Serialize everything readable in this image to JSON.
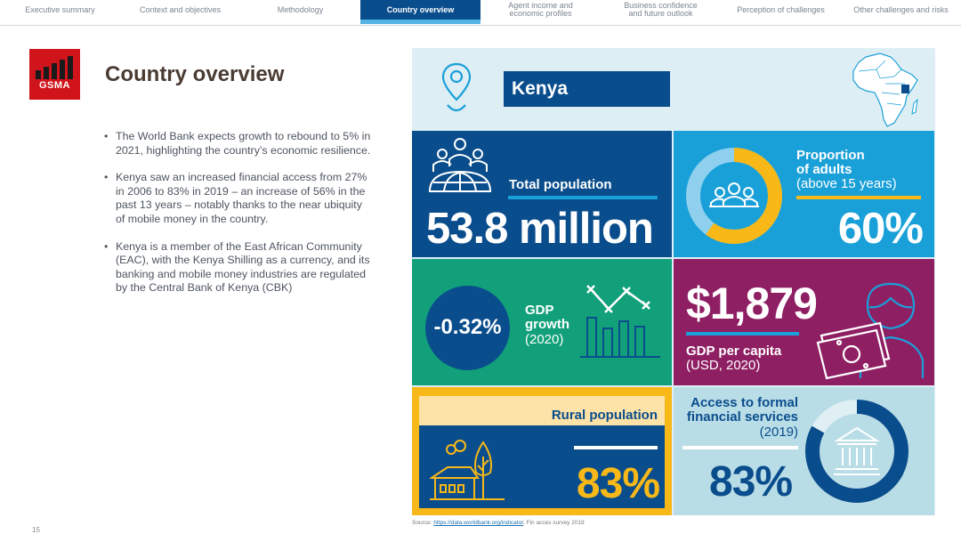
{
  "nav": {
    "tabs": [
      {
        "label": "Executive summary"
      },
      {
        "label": "Context and objectives"
      },
      {
        "label": "Methodology"
      },
      {
        "label": "Country overview"
      },
      {
        "label_line1": "Agent income and",
        "label_line2": "economic profiles"
      },
      {
        "label_line1": "Business confidence",
        "label_line2": "and future outlook"
      },
      {
        "label": "Perception of challenges"
      },
      {
        "label": "Other challenges and risks"
      }
    ],
    "active_tab": "Country overview"
  },
  "logo": {
    "text": "GSMA"
  },
  "page": {
    "title": "Country overview",
    "page_number": "15",
    "bullets": [
      "The World Bank expects growth to rebound to 5% in 2021, highlighting the country’s economic resilience.",
      "Kenya saw an increased financial access from 27% in 2006 to 83% in 2019 – an increase of 56% in the past 13 years – notably thanks to the near ubiquity of mobile money in the country.",
      "Kenya is a member of the East African Community (EAC), with the Kenya Shilling as a currency, and its banking and mobile money industries are regulated by the Central Bank of Kenya (CBK)"
    ]
  },
  "infographic": {
    "country": "Kenya",
    "total_population": {
      "label": "Total population",
      "value": "53.8 million"
    },
    "adults": {
      "label_line1": "Proportion",
      "label_line2": "of adults",
      "label_line3": "(above 15 years)",
      "value": "60%",
      "fraction": 0.6
    },
    "gdp_growth": {
      "value": "-0.32%",
      "label_line1": "GDP",
      "label_line2": "growth",
      "label_line3": "(2020)"
    },
    "gdp_per_capita": {
      "value": "$1,879",
      "label_line1": "GDP per capita",
      "label_line2": "(USD, 2020)"
    },
    "rural_population": {
      "label": "Rural population",
      "value": "83%"
    },
    "access": {
      "label_line1": "Access to formal",
      "label_line2": "financial services",
      "label_line3": "(2019)",
      "value": "83%",
      "fraction": 0.83
    }
  },
  "source": {
    "prefix": "Source: ",
    "link": "https://data.worldbank.org/indicator",
    "suffix": ", Fin acces survey 2019"
  },
  "colors": {
    "navy": "#0a4d8c",
    "light_blue": "#1aa0d8",
    "green": "#12a07a",
    "magenta": "#8f1f63",
    "yellow": "#f7b818",
    "pale_blue": "#b9dde7",
    "gsma_red": "#d1141b"
  }
}
